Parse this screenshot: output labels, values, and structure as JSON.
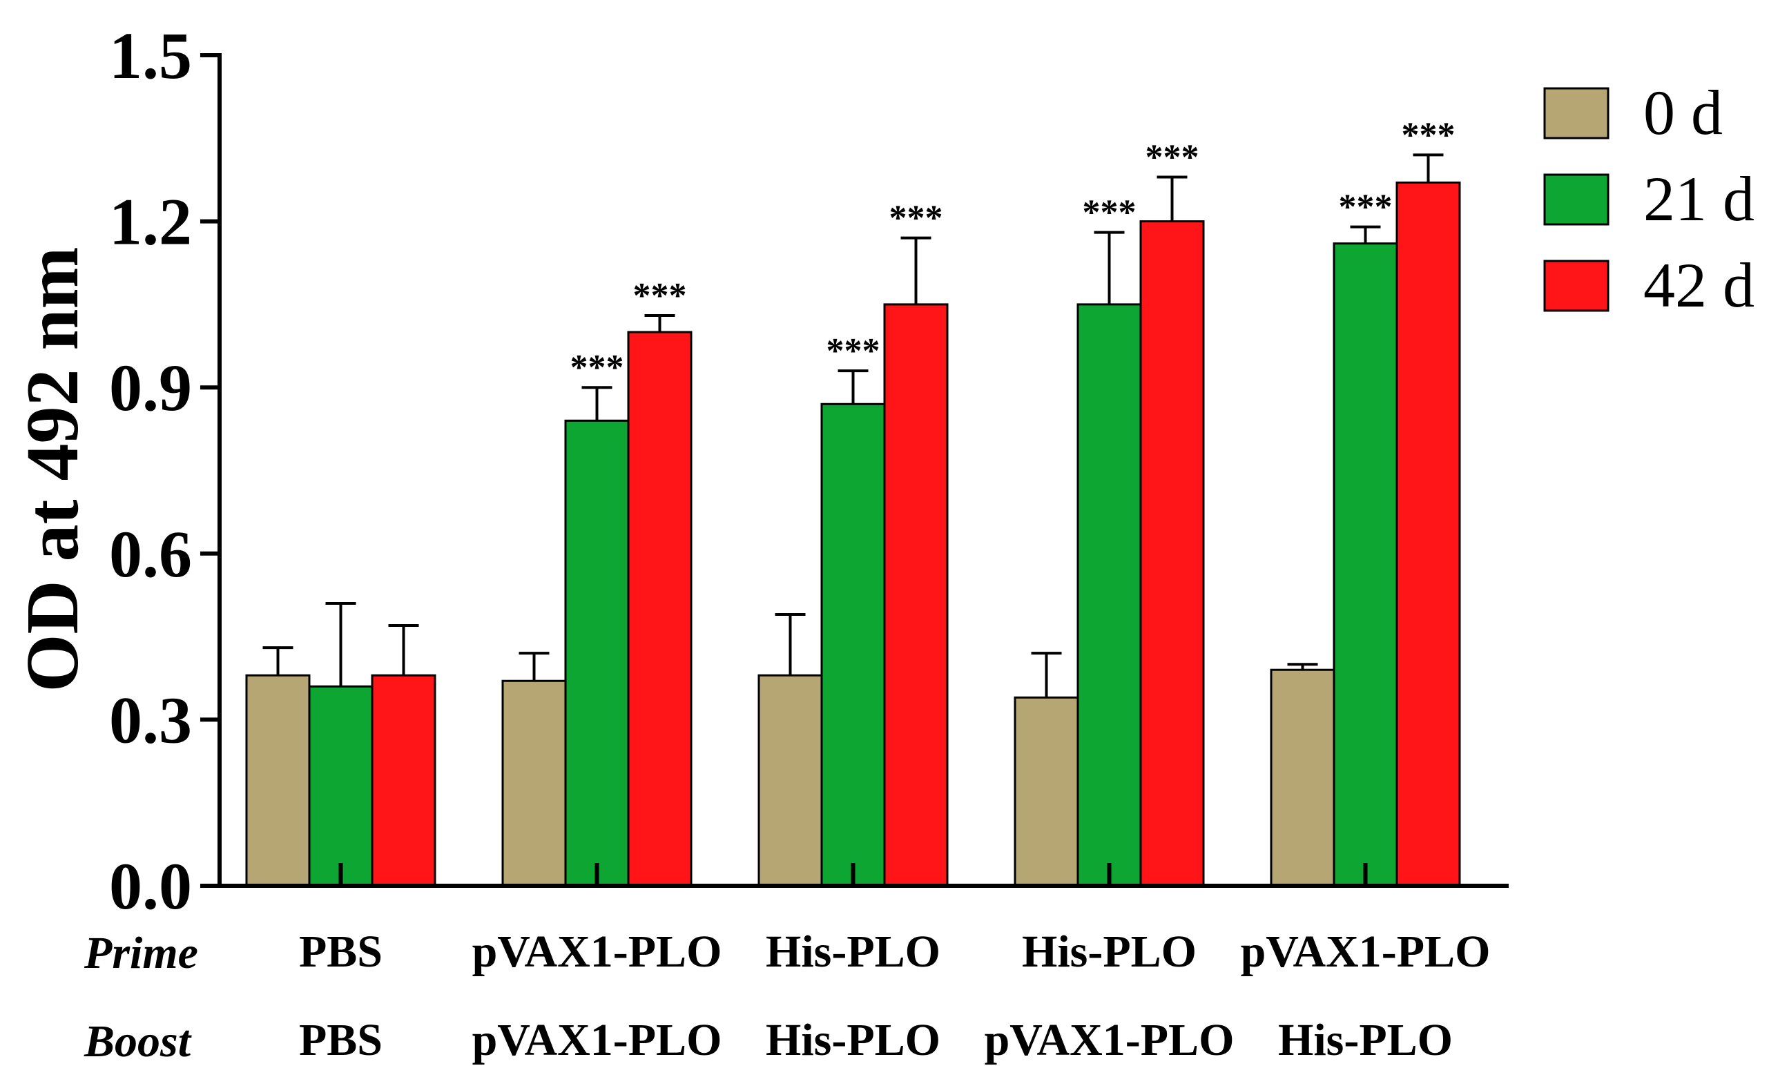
{
  "chart_data": {
    "type": "bar",
    "title": "",
    "xlabel": "",
    "ylabel": "OD at 492 nm",
    "ylim": [
      0,
      1.5
    ],
    "yticks": [
      0.0,
      0.3,
      0.6,
      0.9,
      1.2,
      1.5
    ],
    "ytick_labels": [
      "0.0",
      "0.3",
      "0.6",
      "0.9",
      "1.2",
      "1.5"
    ],
    "row_labels": {
      "prime": "Prime",
      "boost": "Boost"
    },
    "categories": [
      {
        "prime": "PBS",
        "boost": "PBS"
      },
      {
        "prime": "pVAX1-PLO",
        "boost": "pVAX1-PLO"
      },
      {
        "prime": "His-PLO",
        "boost": "His-PLO"
      },
      {
        "prime": "His-PLO",
        "boost": "pVAX1-PLO"
      },
      {
        "prime": "pVAX1-PLO",
        "boost": "His-PLO"
      }
    ],
    "series": [
      {
        "name": "0 d",
        "color": "#B5A673",
        "values": [
          0.38,
          0.37,
          0.38,
          0.34,
          0.39
        ],
        "errors": [
          0.05,
          0.05,
          0.11,
          0.08,
          0.01
        ],
        "significance": [
          "",
          "",
          "",
          "",
          ""
        ]
      },
      {
        "name": "21 d",
        "color": "#0DA632",
        "values": [
          0.36,
          0.84,
          0.87,
          1.05,
          1.16
        ],
        "errors": [
          0.15,
          0.06,
          0.06,
          0.13,
          0.03
        ],
        "significance": [
          "",
          "***",
          "***",
          "***",
          "***"
        ]
      },
      {
        "name": "42 d",
        "color": "#FF1418",
        "values": [
          0.38,
          1.0,
          1.05,
          1.2,
          1.27
        ],
        "errors": [
          0.09,
          0.03,
          0.12,
          0.08,
          0.05
        ],
        "significance": [
          "",
          "***",
          "***",
          "***",
          "***"
        ]
      }
    ],
    "legend_position": "top-right"
  }
}
